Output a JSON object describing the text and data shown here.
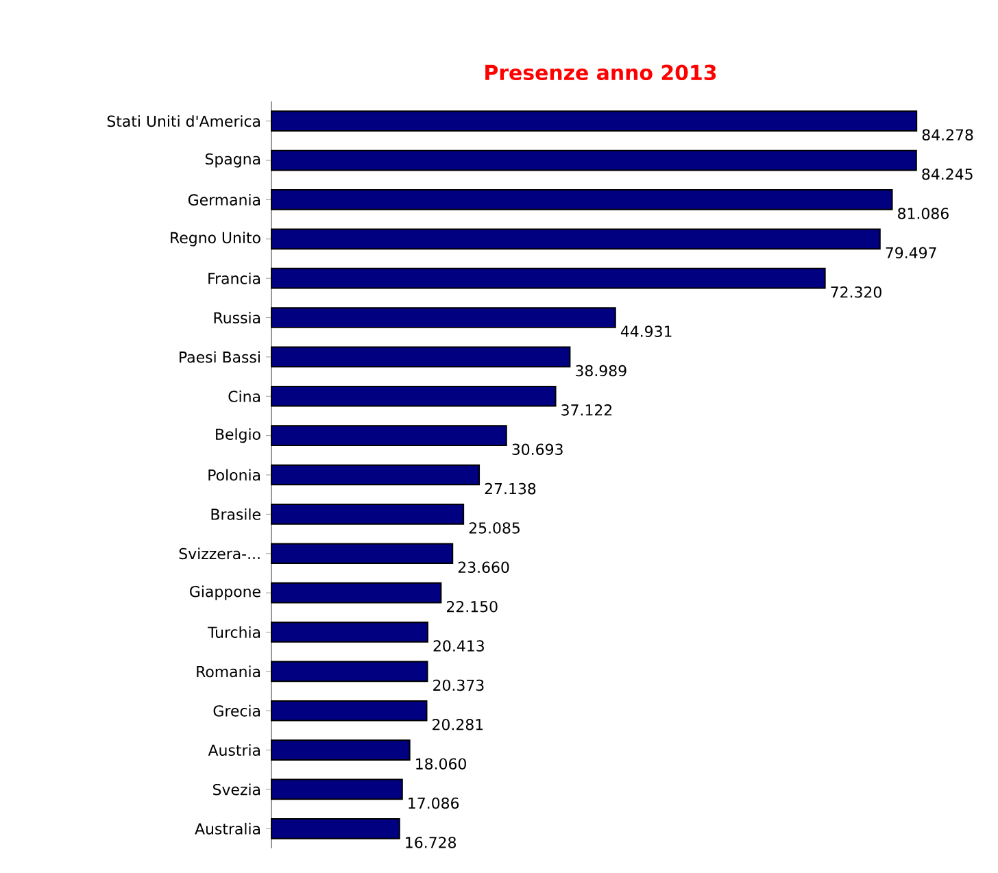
{
  "chart_data": {
    "type": "bar",
    "orientation": "horizontal",
    "title": "Presenze anno 2013",
    "categories": [
      "Stati Uniti d'America",
      "Spagna",
      "Germania",
      "Regno Unito",
      "Francia",
      "Russia",
      "Paesi Bassi",
      "Cina",
      "Belgio",
      "Polonia",
      "Brasile",
      "Svizzera-...",
      "Giappone",
      "Turchia",
      "Romania",
      "Grecia",
      "Austria",
      "Svezia",
      "Australia"
    ],
    "values": [
      84278,
      84245,
      81086,
      79497,
      72320,
      44931,
      38989,
      37122,
      30693,
      27138,
      25085,
      23660,
      22150,
      20413,
      20373,
      20281,
      18060,
      17086,
      16728
    ],
    "value_labels": [
      "84.278",
      "84.245",
      "81.086",
      "79.497",
      "72.320",
      "44.931",
      "38.989",
      "37.122",
      "30.693",
      "27.138",
      "25.085",
      "23.660",
      "22.150",
      "20.413",
      "20.373",
      "20.281",
      "18.060",
      "17.086",
      "16.728"
    ],
    "color": "#000080"
  }
}
